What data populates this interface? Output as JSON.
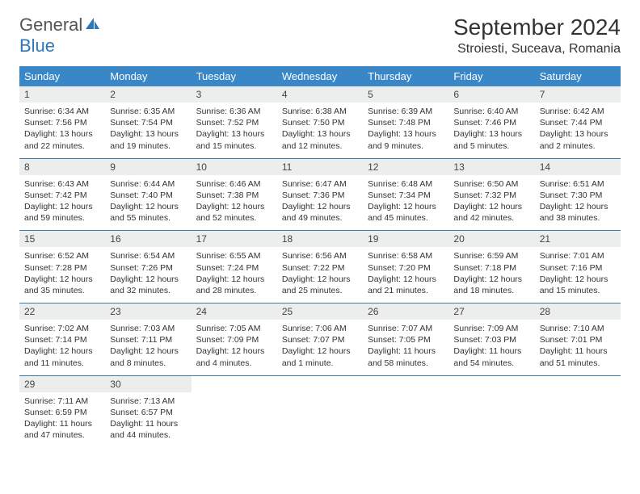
{
  "logo": {
    "general": "General",
    "blue": "Blue"
  },
  "title": "September 2024",
  "location": "Stroiesti, Suceava, Romania",
  "colors": {
    "header_bg": "#3a87c8",
    "header_text": "#ffffff",
    "daynum_bg": "#eceeee",
    "row_border": "#3a7aa8",
    "logo_blue": "#2f78b7",
    "logo_gray": "#555555",
    "text": "#333333",
    "background": "#ffffff"
  },
  "weekdays": [
    "Sunday",
    "Monday",
    "Tuesday",
    "Wednesday",
    "Thursday",
    "Friday",
    "Saturday"
  ],
  "days": [
    {
      "n": "1",
      "sr": "6:34 AM",
      "ss": "7:56 PM",
      "dl": "13 hours and 22 minutes."
    },
    {
      "n": "2",
      "sr": "6:35 AM",
      "ss": "7:54 PM",
      "dl": "13 hours and 19 minutes."
    },
    {
      "n": "3",
      "sr": "6:36 AM",
      "ss": "7:52 PM",
      "dl": "13 hours and 15 minutes."
    },
    {
      "n": "4",
      "sr": "6:38 AM",
      "ss": "7:50 PM",
      "dl": "13 hours and 12 minutes."
    },
    {
      "n": "5",
      "sr": "6:39 AM",
      "ss": "7:48 PM",
      "dl": "13 hours and 9 minutes."
    },
    {
      "n": "6",
      "sr": "6:40 AM",
      "ss": "7:46 PM",
      "dl": "13 hours and 5 minutes."
    },
    {
      "n": "7",
      "sr": "6:42 AM",
      "ss": "7:44 PM",
      "dl": "13 hours and 2 minutes."
    },
    {
      "n": "8",
      "sr": "6:43 AM",
      "ss": "7:42 PM",
      "dl": "12 hours and 59 minutes."
    },
    {
      "n": "9",
      "sr": "6:44 AM",
      "ss": "7:40 PM",
      "dl": "12 hours and 55 minutes."
    },
    {
      "n": "10",
      "sr": "6:46 AM",
      "ss": "7:38 PM",
      "dl": "12 hours and 52 minutes."
    },
    {
      "n": "11",
      "sr": "6:47 AM",
      "ss": "7:36 PM",
      "dl": "12 hours and 49 minutes."
    },
    {
      "n": "12",
      "sr": "6:48 AM",
      "ss": "7:34 PM",
      "dl": "12 hours and 45 minutes."
    },
    {
      "n": "13",
      "sr": "6:50 AM",
      "ss": "7:32 PM",
      "dl": "12 hours and 42 minutes."
    },
    {
      "n": "14",
      "sr": "6:51 AM",
      "ss": "7:30 PM",
      "dl": "12 hours and 38 minutes."
    },
    {
      "n": "15",
      "sr": "6:52 AM",
      "ss": "7:28 PM",
      "dl": "12 hours and 35 minutes."
    },
    {
      "n": "16",
      "sr": "6:54 AM",
      "ss": "7:26 PM",
      "dl": "12 hours and 32 minutes."
    },
    {
      "n": "17",
      "sr": "6:55 AM",
      "ss": "7:24 PM",
      "dl": "12 hours and 28 minutes."
    },
    {
      "n": "18",
      "sr": "6:56 AM",
      "ss": "7:22 PM",
      "dl": "12 hours and 25 minutes."
    },
    {
      "n": "19",
      "sr": "6:58 AM",
      "ss": "7:20 PM",
      "dl": "12 hours and 21 minutes."
    },
    {
      "n": "20",
      "sr": "6:59 AM",
      "ss": "7:18 PM",
      "dl": "12 hours and 18 minutes."
    },
    {
      "n": "21",
      "sr": "7:01 AM",
      "ss": "7:16 PM",
      "dl": "12 hours and 15 minutes."
    },
    {
      "n": "22",
      "sr": "7:02 AM",
      "ss": "7:14 PM",
      "dl": "12 hours and 11 minutes."
    },
    {
      "n": "23",
      "sr": "7:03 AM",
      "ss": "7:11 PM",
      "dl": "12 hours and 8 minutes."
    },
    {
      "n": "24",
      "sr": "7:05 AM",
      "ss": "7:09 PM",
      "dl": "12 hours and 4 minutes."
    },
    {
      "n": "25",
      "sr": "7:06 AM",
      "ss": "7:07 PM",
      "dl": "12 hours and 1 minute."
    },
    {
      "n": "26",
      "sr": "7:07 AM",
      "ss": "7:05 PM",
      "dl": "11 hours and 58 minutes."
    },
    {
      "n": "27",
      "sr": "7:09 AM",
      "ss": "7:03 PM",
      "dl": "11 hours and 54 minutes."
    },
    {
      "n": "28",
      "sr": "7:10 AM",
      "ss": "7:01 PM",
      "dl": "11 hours and 51 minutes."
    },
    {
      "n": "29",
      "sr": "7:11 AM",
      "ss": "6:59 PM",
      "dl": "11 hours and 47 minutes."
    },
    {
      "n": "30",
      "sr": "7:13 AM",
      "ss": "6:57 PM",
      "dl": "11 hours and 44 minutes."
    }
  ],
  "labels": {
    "sunrise": "Sunrise: ",
    "sunset": "Sunset: ",
    "daylight": "Daylight: "
  }
}
